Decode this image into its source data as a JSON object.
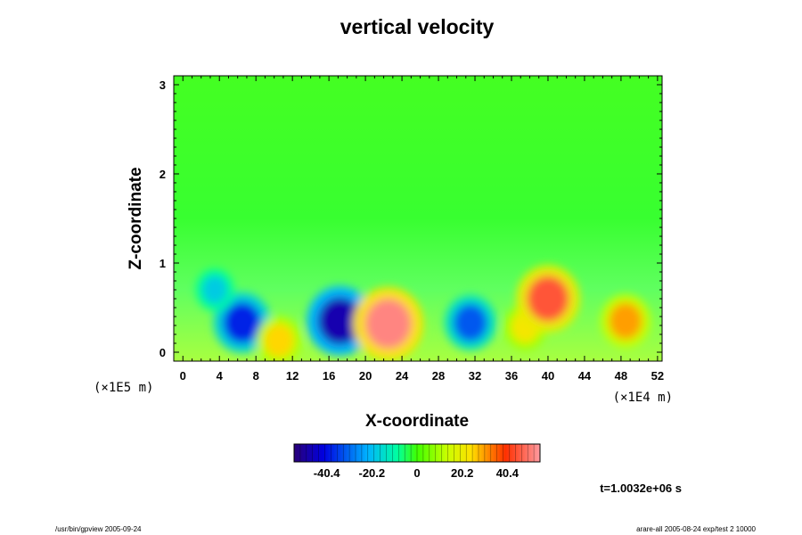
{
  "chart_data": {
    "type": "heatmap",
    "title": "vertical velocity",
    "xlabel": "X-coordinate",
    "ylabel": "Z-coordinate",
    "x_unit_label": "(×1E4 m)",
    "z_unit_label": "(×1E5 m)",
    "xlim": [
      -1,
      52.5
    ],
    "ylim": [
      -0.1,
      3.1
    ],
    "x_ticks": [
      0,
      4,
      8,
      12,
      16,
      20,
      24,
      28,
      32,
      36,
      40,
      44,
      48,
      52
    ],
    "y_ticks": [
      0,
      1,
      2,
      3
    ],
    "colorbar": {
      "range": [
        -55,
        55
      ],
      "tick_values": [
        -40.4,
        -20.2,
        0,
        20.2,
        40.4
      ],
      "tick_labels": [
        "-40.4",
        "-20.2",
        "0",
        "20.2",
        "40.4"
      ]
    },
    "time_label": "t=1.0032e+06 s",
    "features": [
      {
        "x": 6.5,
        "z": 0.33,
        "value": -38
      },
      {
        "x": 3.5,
        "z": 0.7,
        "value": -18
      },
      {
        "x": 10.5,
        "z": 0.13,
        "value": 25
      },
      {
        "x": 17.2,
        "z": 0.35,
        "value": -48
      },
      {
        "x": 22.5,
        "z": 0.32,
        "value": 52
      },
      {
        "x": 31.5,
        "z": 0.33,
        "value": -32
      },
      {
        "x": 37.5,
        "z": 0.28,
        "value": 22
      },
      {
        "x": 40,
        "z": 0.6,
        "value": 45
      },
      {
        "x": 48.5,
        "z": 0.35,
        "value": 30
      }
    ]
  },
  "footer": {
    "left": "/usr/bin/gpview 2005-09-24",
    "right": "arare-all  2005-08-24 exp/test 2 10000"
  }
}
